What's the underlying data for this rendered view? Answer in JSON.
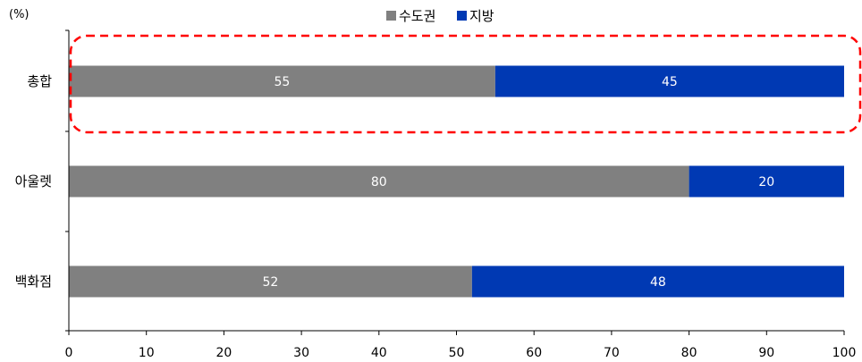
{
  "chart_data": {
    "type": "bar",
    "orientation": "horizontal",
    "stacked": true,
    "unit_label": "(%)",
    "categories": [
      "총합",
      "아울렛",
      "백화점"
    ],
    "series": [
      {
        "name": "수도권",
        "color": "#808080",
        "values": [
          55,
          80,
          52
        ]
      },
      {
        "name": "지방",
        "color": "#0039b3",
        "values": [
          45,
          20,
          48
        ]
      }
    ],
    "xlim": [
      0,
      100
    ],
    "xticks": [
      0,
      10,
      20,
      30,
      40,
      50,
      60,
      70,
      80,
      90,
      100
    ],
    "grid": false,
    "legend_position": "top-center",
    "highlight": {
      "category": "총합",
      "style": "dashed",
      "color": "#ff0000"
    }
  }
}
